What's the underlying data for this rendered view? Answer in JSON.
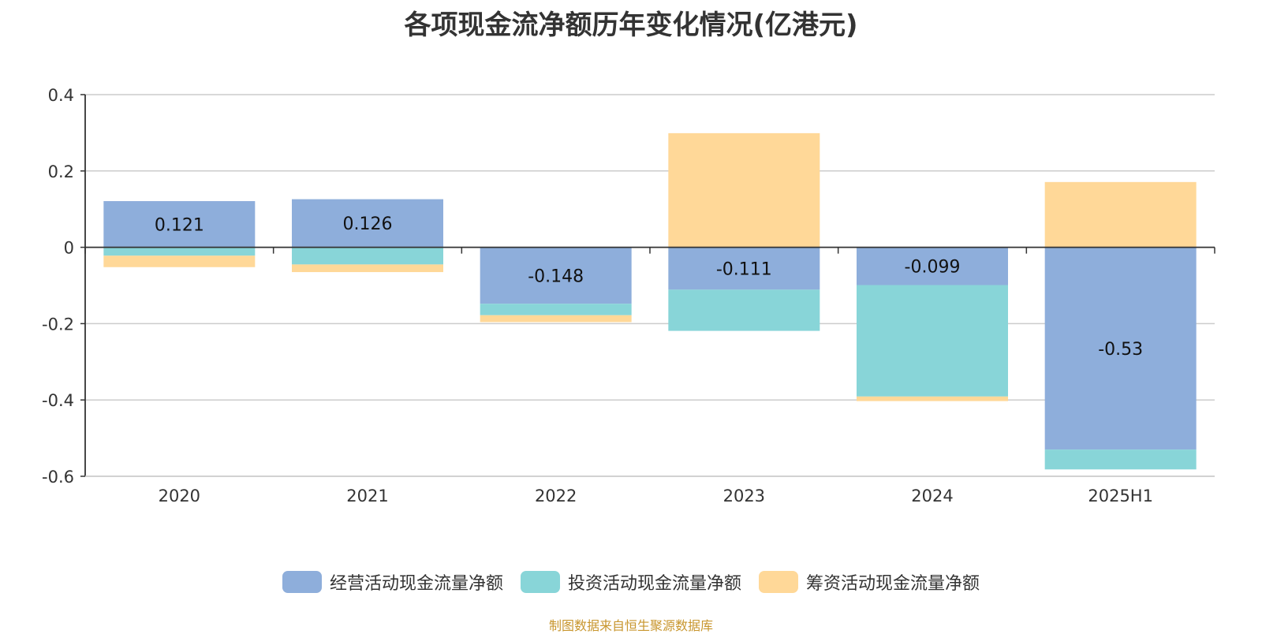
{
  "title": "各项现金流净额历年变化情况(亿港元)",
  "source": "制图数据来自恒生聚源数据库",
  "colors": {
    "operating": "#8eaedb",
    "investing": "#88d5d8",
    "financing": "#ffd898",
    "grid": "#cccccc",
    "axis": "#333333"
  },
  "legend": [
    {
      "label": "经营活动现金流量净额",
      "color": "#8eaedb"
    },
    {
      "label": "投资活动现金流量净额",
      "color": "#88d5d8"
    },
    {
      "label": "筹资活动现金流量净额",
      "color": "#ffd898"
    }
  ],
  "chart_data": {
    "type": "bar",
    "stacked": true,
    "title": "各项现金流净额历年变化情况(亿港元)",
    "categories": [
      "2020",
      "2021",
      "2022",
      "2023",
      "2024",
      "2025H1"
    ],
    "ylim": [
      -0.6,
      0.4
    ],
    "yticks": [
      0.4,
      0.2,
      0,
      -0.2,
      -0.4,
      -0.6
    ],
    "ytick_labels": [
      "0.4",
      "0.2",
      "0",
      "-0.2",
      "-0.4",
      "-0.6"
    ],
    "grid": true,
    "legend_position": "bottom",
    "series": [
      {
        "name": "经营活动现金流量净额",
        "values": [
          0.121,
          0.126,
          -0.148,
          -0.111,
          -0.099,
          -0.53
        ],
        "labels": [
          "0.121",
          "0.126",
          "-0.148",
          "-0.111",
          "-0.099",
          "-0.53"
        ]
      },
      {
        "name": "投资活动现金流量净额",
        "values": [
          -0.022,
          -0.045,
          -0.03,
          -0.108,
          -0.292,
          -0.052
        ]
      },
      {
        "name": "筹资活动现金流量净额",
        "values": [
          -0.03,
          -0.02,
          -0.018,
          0.299,
          -0.012,
          0.171
        ]
      }
    ]
  }
}
